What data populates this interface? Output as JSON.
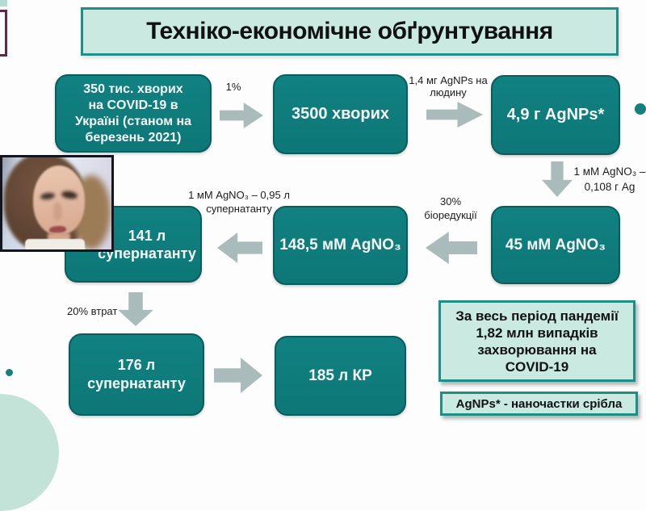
{
  "slide": {
    "title": "Техніко-економічне обґрунтування",
    "boxes": {
      "covid": "350 тис. хворих\nна COVID-19 в\nУкраїні (станом на\nберезень 2021)",
      "patients": "3500 хворих",
      "agnps": "4,9 г AgNPs*",
      "agno45": "45 мМ AgNO₃",
      "agno148": "148,5 мМ AgNO₃",
      "sup141": "141 л\nсупернатанту",
      "sup176": "176 л\nсупернатанту",
      "kr185": "185 л КР"
    },
    "arrow_labels": {
      "pct1": "1%",
      "dose": "1,4 мг AgNPs на\nлюдину",
      "silver_conv": "1 мМ AgNO₃ –\n0,108 г Ag",
      "bioreduction": "30%\nбіоредукції",
      "supernatant_conv": "1 мМ AgNO₃ – 0,95 л\nсупернатанту",
      "loss": "20% втрат"
    },
    "info_box": "За весь період пандемії\n1,82 млн випадків\nзахворювання на\nCOVID-19",
    "legend_box": "AgNPs* - наночастки срібла",
    "colors": {
      "box_teal": "#0f7b7b",
      "mint": "#c9e9e1",
      "teal_border": "#1f8e89",
      "arrow_gray": "#a9bcbb",
      "accent_maroon": "#5f2947"
    }
  },
  "webcam": {
    "description": "speaker video thumbnail"
  }
}
